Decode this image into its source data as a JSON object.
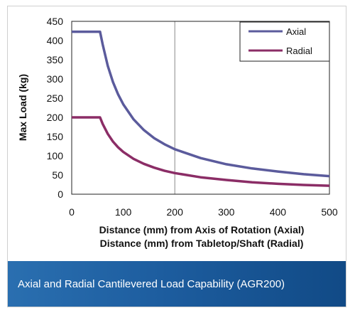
{
  "chart_data": {
    "type": "line",
    "xlabel_lines": [
      "Distance (mm) from Axis of Rotation (Axial)",
      "Distance (mm) from Tabletop/Shaft (Radial)"
    ],
    "ylabel": "Max Load (kg)",
    "xlim": [
      0,
      500
    ],
    "ylim": [
      0,
      450
    ],
    "x_ticks": [
      0,
      100,
      200,
      300,
      400,
      500
    ],
    "y_ticks": [
      0,
      50,
      100,
      150,
      200,
      250,
      300,
      350,
      400,
      450
    ],
    "grid": "vertical line at x=200",
    "legend_position": "top-right",
    "series": [
      {
        "name": "Axial",
        "color": "#5b5b9c",
        "x": [
          0,
          55,
          60,
          70,
          80,
          90,
          100,
          120,
          140,
          160,
          180,
          200,
          250,
          300,
          350,
          400,
          450,
          500
        ],
        "y": [
          423,
          423,
          390,
          334,
          292,
          260,
          234,
          195,
          167,
          146,
          130,
          117,
          94,
          78,
          67,
          59,
          52,
          47
        ]
      },
      {
        "name": "Radial",
        "color": "#8b2d66",
        "x": [
          0,
          55,
          60,
          70,
          80,
          90,
          100,
          120,
          140,
          160,
          180,
          200,
          250,
          300,
          350,
          400,
          450,
          500
        ],
        "y": [
          200,
          200,
          183,
          157,
          137,
          122,
          110,
          92,
          79,
          69,
          61,
          55,
          44,
          37,
          31,
          27,
          24,
          22
        ]
      }
    ]
  },
  "caption": "Axial and Radial Cantilevered Load Capability (AGR200)"
}
